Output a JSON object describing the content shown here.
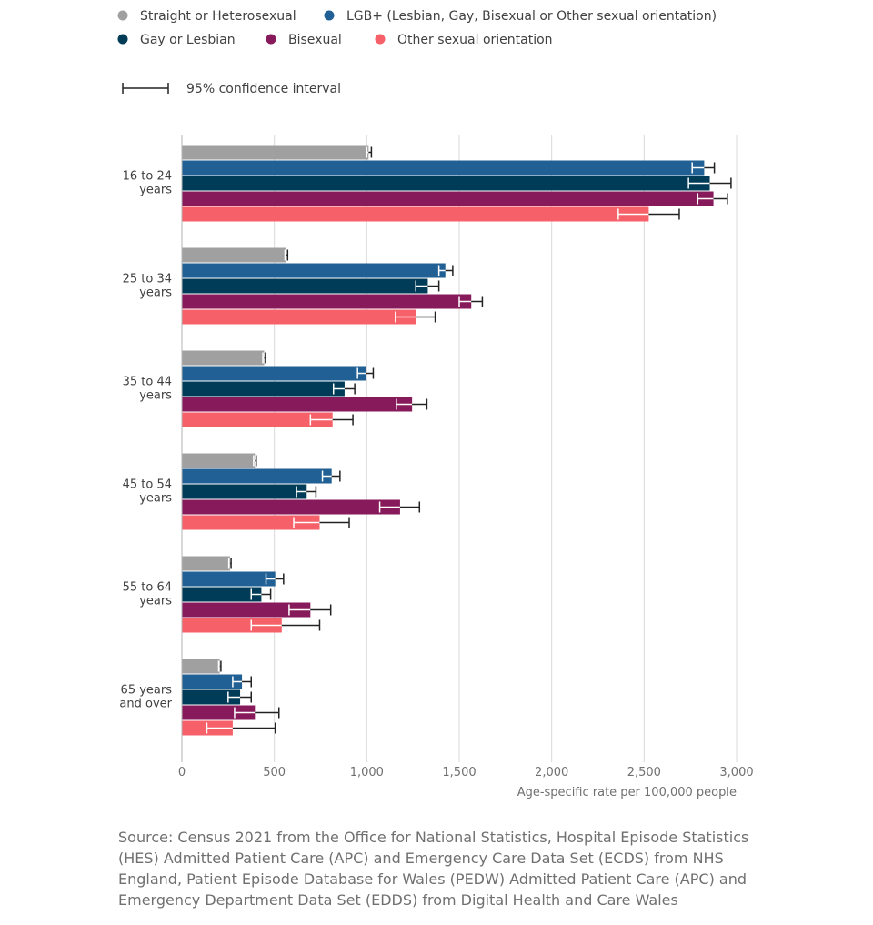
{
  "legend": {
    "ci_label": "95% confidence interval"
  },
  "source_text": "Source: Census 2021 from the Office for National Statistics, Hospital Episode Statistics (HES) Admitted Patient Care (APC) and Emergency Care Data Set (ECDS) from NHS England, Patient Episode Database for Wales (PEDW) Admitted Patient Care (APC) and Emergency Department Data Set (EDDS) from Digital Health and Care Wales",
  "chart_data": {
    "type": "bar",
    "orientation": "horizontal",
    "title": "",
    "xlabel": "Age-specific rate per 100,000 people",
    "ylabel": "",
    "xlim": [
      0,
      3000
    ],
    "xticks": [
      0,
      500,
      1000,
      1500,
      2000,
      2500,
      3000
    ],
    "xtick_labels": [
      "0",
      "500",
      "1,000",
      "1,500",
      "2,000",
      "2,500",
      "3,000"
    ],
    "grid": "vertical",
    "legend_position": "top-left",
    "categories": [
      [
        "16 to 24",
        "years"
      ],
      [
        "25 to 34",
        "years"
      ],
      [
        "35 to 44",
        "years"
      ],
      [
        "45 to 54",
        "years"
      ],
      [
        "55 to 64",
        "years"
      ],
      [
        "65 years",
        "and over"
      ]
    ],
    "series": [
      {
        "name": "Straight or Heterosexual",
        "color": "#a0a0a0",
        "ci_color": "#222222",
        "values": [
          1010,
          565,
          445,
          395,
          260,
          205
        ],
        "ci_low": [
          1000,
          558,
          438,
          388,
          254,
          199
        ],
        "ci_high": [
          1025,
          572,
          452,
          402,
          266,
          211
        ]
      },
      {
        "name": "LGB+ (Lesbian, Gay, Bisexual or Other sexual orientation)",
        "color": "#206095",
        "ci_color": "#222222",
        "values": [
          2825,
          1425,
          995,
          810,
          505,
          325
        ],
        "ci_low": [
          2760,
          1390,
          950,
          760,
          455,
          275
        ],
        "ci_high": [
          2880,
          1465,
          1035,
          855,
          550,
          375
        ]
      },
      {
        "name": "Gay or Lesbian",
        "color": "#003c57",
        "ci_color": "#222222",
        "values": [
          2855,
          1330,
          880,
          675,
          430,
          315
        ],
        "ci_low": [
          2740,
          1265,
          820,
          620,
          375,
          250
        ],
        "ci_high": [
          2970,
          1390,
          935,
          725,
          480,
          375
        ]
      },
      {
        "name": "Bisexual",
        "color": "#871a5b",
        "ci_color": "#222222",
        "values": [
          2875,
          1565,
          1245,
          1180,
          695,
          395
        ],
        "ci_low": [
          2790,
          1500,
          1160,
          1070,
          580,
          285
        ],
        "ci_high": [
          2950,
          1625,
          1325,
          1285,
          805,
          525
        ]
      },
      {
        "name": "Other sexual orientation",
        "color": "#f66068",
        "ci_color": "#222222",
        "values": [
          2525,
          1265,
          815,
          745,
          540,
          275
        ],
        "ci_low": [
          2360,
          1155,
          695,
          605,
          375,
          135
        ],
        "ci_high": [
          2690,
          1370,
          925,
          905,
          745,
          505
        ]
      }
    ]
  }
}
